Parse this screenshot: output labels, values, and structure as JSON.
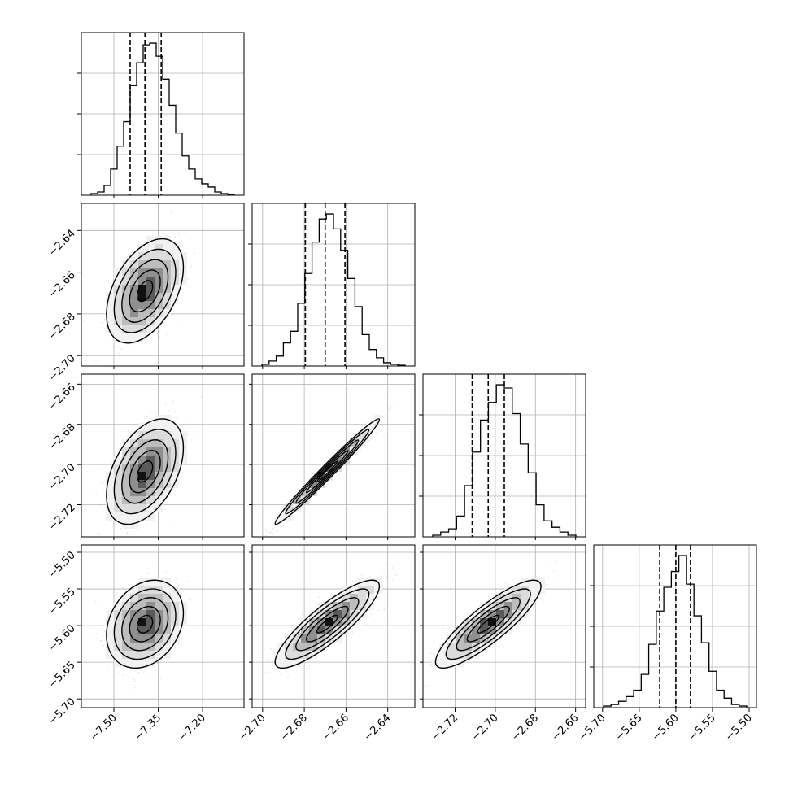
{
  "chart_data": {
    "type": "corner",
    "grid": true,
    "parameters": [
      {
        "range": [
          -7.61,
          -7.06
        ],
        "ticks": [
          -7.5,
          -7.35,
          -7.2
        ],
        "tick_labels": [
          "−7.50",
          "−7.35",
          "−7.20"
        ],
        "quantiles": [
          -7.445,
          -7.395,
          -7.34
        ],
        "hist": [
          0.01,
          0.02,
          0.06,
          0.16,
          0.3,
          0.45,
          0.67,
          0.81,
          0.92,
          0.93,
          0.85,
          0.71,
          0.55,
          0.38,
          0.24,
          0.16,
          0.1,
          0.07,
          0.05,
          0.02,
          0.01,
          0.005
        ]
      },
      {
        "range": [
          -2.705,
          -2.627
        ],
        "ticks": [
          -2.7,
          -2.68,
          -2.66,
          -2.64
        ],
        "tick_labels": [
          "−2.70",
          "−2.68",
          "−2.66",
          "−2.64"
        ],
        "quantiles": [
          -2.6795,
          -2.67,
          -2.6605
        ],
        "hist": [
          0.01,
          0.03,
          0.06,
          0.14,
          0.21,
          0.38,
          0.56,
          0.75,
          0.89,
          0.92,
          0.83,
          0.7,
          0.53,
          0.36,
          0.19,
          0.1,
          0.05,
          0.02,
          0.01,
          0.005
        ]
      },
      {
        "range": [
          -2.736,
          -2.655
        ],
        "ticks": [
          -2.72,
          -2.7,
          -2.68,
          -2.66
        ],
        "tick_labels": [
          "−2.72",
          "−2.70",
          "−2.68",
          "−2.66"
        ],
        "quantiles": [
          -2.7115,
          -2.7035,
          -2.6955
        ],
        "hist": [
          0.01,
          0.03,
          0.05,
          0.13,
          0.32,
          0.53,
          0.73,
          0.84,
          0.95,
          0.93,
          0.77,
          0.58,
          0.4,
          0.2,
          0.1,
          0.06,
          0.03,
          0.01
        ]
      },
      {
        "range": [
          -5.712,
          -5.49
        ],
        "ticks": [
          -5.7,
          -5.65,
          -5.6,
          -5.55,
          -5.5
        ],
        "tick_labels": [
          "−5.70",
          "−5.65",
          "−5.60",
          "−5.55",
          "−5.50"
        ],
        "quantiles": [
          -5.622,
          -5.6,
          -5.58
        ],
        "hist": [
          0.01,
          0.02,
          0.04,
          0.07,
          0.11,
          0.21,
          0.4,
          0.61,
          0.76,
          0.86,
          0.96,
          0.78,
          0.58,
          0.41,
          0.23,
          0.11,
          0.06,
          0.02,
          0.01
        ]
      }
    ],
    "pairs": [
      {
        "x": 0,
        "y": 1,
        "ylabels": true,
        "xlabels": false,
        "mean": [
          -7.395,
          -2.669
        ],
        "sd": [
          0.052,
          0.01
        ],
        "rho": 0.45
      },
      {
        "x": 0,
        "y": 2,
        "ylabels": true,
        "xlabels": false,
        "mean": [
          -7.395,
          -2.7035
        ],
        "sd": [
          0.052,
          0.0105
        ],
        "rho": 0.45
      },
      {
        "x": 1,
        "y": 2,
        "ylabels": false,
        "xlabels": false,
        "mean": [
          -2.669,
          -2.7035
        ],
        "sd": [
          0.01,
          0.0105
        ],
        "rho": 0.985
      },
      {
        "x": 0,
        "y": 3,
        "ylabels": true,
        "xlabels": true,
        "mean": [
          -7.395,
          -5.598
        ],
        "sd": [
          0.052,
          0.024
        ],
        "rho": 0.25
      },
      {
        "x": 1,
        "y": 3,
        "ylabels": false,
        "xlabels": true,
        "mean": [
          -2.669,
          -5.598
        ],
        "sd": [
          0.01,
          0.024
        ],
        "rho": 0.86
      },
      {
        "x": 2,
        "y": 3,
        "ylabels": false,
        "xlabels": true,
        "mean": [
          -2.7035,
          -5.598
        ],
        "sd": [
          0.0105,
          0.024
        ],
        "rho": 0.86
      }
    ]
  }
}
